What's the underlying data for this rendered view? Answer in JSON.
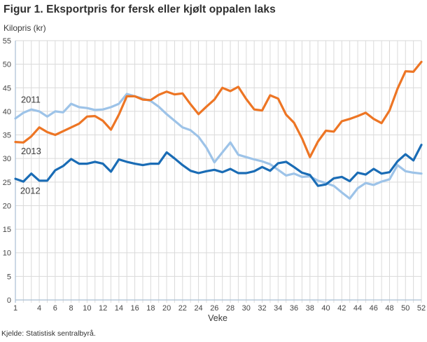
{
  "title": "Figur 1. Eksportpris for fersk eller kjølt oppalen laks",
  "source": "Kjelde: Statistisk sentralbyrå.",
  "chart_data": {
    "type": "line",
    "title": "Figur 1. Eksportpris for fersk eller kjølt oppalen laks",
    "xlabel": "Veke",
    "ylabel": "Kilopris (kr)",
    "x_range": [
      1,
      52
    ],
    "ylim": [
      0,
      55
    ],
    "x_tick_labels": [
      1,
      4,
      6,
      8,
      10,
      12,
      14,
      16,
      18,
      20,
      22,
      24,
      26,
      28,
      30,
      32,
      34,
      36,
      38,
      40,
      42,
      44,
      46,
      48,
      50,
      52
    ],
    "y_tick_labels": [
      0,
      5,
      10,
      15,
      20,
      25,
      30,
      35,
      40,
      45,
      50,
      55
    ],
    "grid": {
      "vertical": "every week 1-52",
      "horizontal": "every 5 kr",
      "color": "#dadada"
    },
    "axis_color": "#a9bfd4",
    "legend_position": "inline-labels-left",
    "x": [
      1,
      2,
      3,
      4,
      5,
      6,
      7,
      8,
      9,
      10,
      11,
      12,
      13,
      14,
      15,
      16,
      17,
      18,
      19,
      20,
      21,
      22,
      23,
      24,
      25,
      26,
      27,
      28,
      29,
      30,
      31,
      32,
      33,
      34,
      35,
      36,
      37,
      38,
      39,
      40,
      41,
      42,
      43,
      44,
      45,
      46,
      47,
      48,
      49,
      50,
      51,
      52
    ],
    "series": [
      {
        "name": "2011",
        "color": "#9dc3e8",
        "label": {
          "week": 1.7,
          "value": 42.5
        },
        "values": [
          38.5,
          39.7,
          40.4,
          40.0,
          38.9,
          40.0,
          39.8,
          41.6,
          40.9,
          40.7,
          40.3,
          40.4,
          40.9,
          41.6,
          43.7,
          43.2,
          42.7,
          42.2,
          41.0,
          39.4,
          38.0,
          36.6,
          36.0,
          34.6,
          32.3,
          29.2,
          31.3,
          33.4,
          30.8,
          30.3,
          29.8,
          29.4,
          28.8,
          27.6,
          26.4,
          26.8,
          26.1,
          26.2,
          25.3,
          24.8,
          24.2,
          22.8,
          21.5,
          23.7,
          24.8,
          24.4,
          25.1,
          25.6,
          28.6,
          27.3,
          27.0,
          26.8
        ]
      },
      {
        "name": "2013",
        "color": "#ed7524",
        "label": {
          "week": 1.7,
          "value": 31.6
        },
        "values": [
          33.5,
          33.4,
          34.7,
          36.6,
          35.6,
          35.0,
          35.8,
          36.6,
          37.4,
          38.9,
          39.0,
          38.0,
          36.1,
          39.3,
          43.2,
          43.2,
          42.5,
          42.4,
          43.5,
          44.2,
          43.6,
          43.8,
          41.5,
          39.4,
          41.0,
          42.5,
          45.0,
          44.3,
          45.2,
          42.6,
          40.4,
          40.2,
          43.4,
          42.7,
          39.3,
          37.6,
          34.3,
          30.3,
          33.6,
          35.9,
          35.7,
          37.9,
          38.4,
          39.0,
          39.7,
          38.4,
          37.5,
          40.2,
          44.8,
          48.5,
          48.4,
          50.5
        ]
      },
      {
        "name": "2012",
        "color": "#1a6cb5",
        "label": {
          "week": 1.6,
          "value": 23.2
        },
        "values": [
          25.7,
          25.1,
          26.8,
          25.3,
          25.3,
          27.5,
          28.4,
          29.9,
          28.9,
          28.9,
          29.3,
          28.9,
          27.2,
          29.8,
          29.3,
          28.9,
          28.6,
          28.9,
          28.9,
          31.3,
          30.0,
          28.6,
          27.4,
          26.9,
          27.3,
          27.6,
          27.1,
          27.8,
          26.9,
          26.9,
          27.3,
          28.2,
          27.4,
          29.0,
          29.3,
          28.2,
          27.0,
          26.5,
          24.2,
          24.5,
          25.8,
          26.1,
          25.2,
          27.0,
          26.6,
          27.8,
          26.8,
          27.1,
          29.4,
          30.9,
          29.6,
          32.9
        ]
      }
    ]
  }
}
